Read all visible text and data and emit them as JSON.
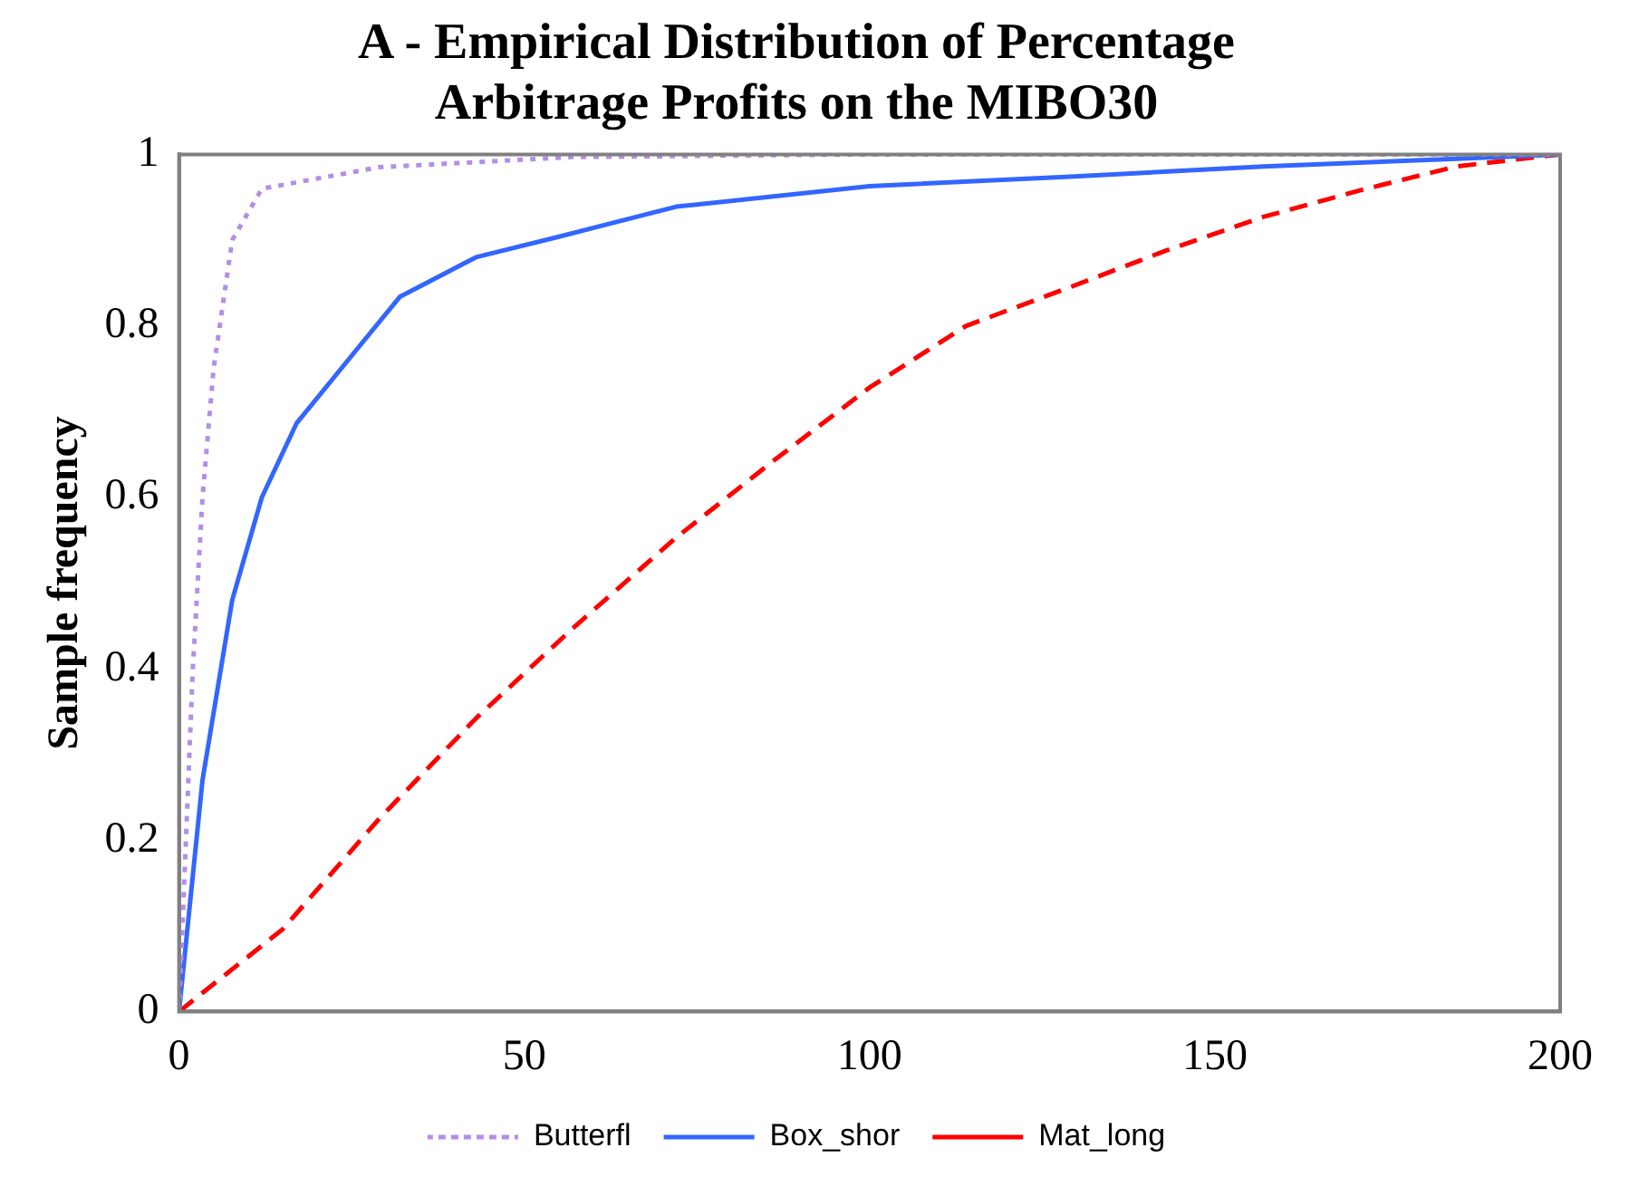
{
  "chart_data": {
    "type": "line",
    "title": "A - Empirical Distribution of Percentage Arbitrage Profits on the MIBO30",
    "ylabel": "Sample frequency",
    "xlim": [
      0,
      200
    ],
    "ylim": [
      0,
      1
    ],
    "xticks": [
      0,
      50,
      100,
      150,
      200
    ],
    "yticks": [
      0,
      0.2,
      0.4,
      0.6,
      0.8,
      1
    ],
    "grid": false,
    "legend": "bottom",
    "marker": "none",
    "series": [
      {
        "name": "Butterfl",
        "color": "#b48ee6",
        "line_style": "dotted",
        "x": [
          0,
          2,
          3.4,
          5,
          7.7,
          12,
          29,
          57,
          100,
          200
        ],
        "values": [
          0,
          0.4,
          0.6,
          0.75,
          0.9,
          0.96,
          0.985,
          0.997,
          1,
          1
        ]
      },
      {
        "name": "Box_shor",
        "color": "#3366ff",
        "line_style": "solid",
        "x": [
          0,
          3.4,
          7.7,
          12,
          17,
          26,
          32,
          43,
          55,
          72,
          100,
          129,
          157,
          185,
          200
        ],
        "values": [
          0,
          0.27,
          0.48,
          0.6,
          0.686,
          0.775,
          0.834,
          0.88,
          0.904,
          0.939,
          0.963,
          0.974,
          0.986,
          0.995,
          1
        ]
      },
      {
        "name": "Mat_long",
        "color": "#ff0000",
        "line_style": "dashed",
        "x": [
          0,
          15,
          29,
          43,
          57,
          72,
          86,
          100,
          114,
          129,
          143,
          157,
          171,
          185,
          200
        ],
        "values": [
          0,
          0.096,
          0.225,
          0.342,
          0.447,
          0.553,
          0.642,
          0.728,
          0.8,
          0.845,
          0.888,
          0.927,
          0.958,
          0.986,
          1
        ]
      }
    ]
  }
}
